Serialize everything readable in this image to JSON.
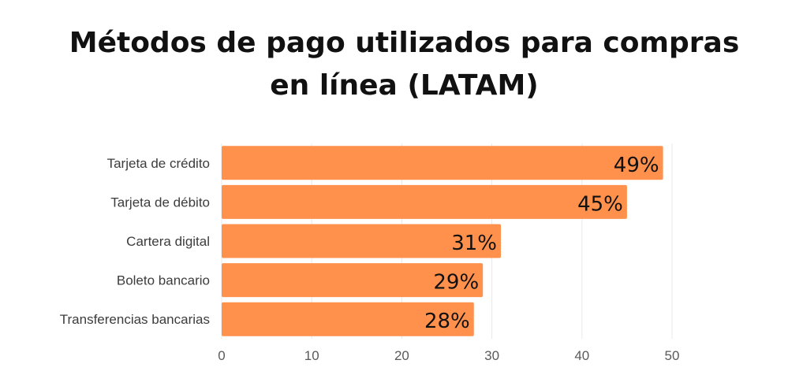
{
  "chart_data": {
    "type": "bar",
    "orientation": "horizontal",
    "title_lines": [
      "Métodos de pago utilizados para compras",
      "en línea (LATAM)"
    ],
    "categories": [
      "Tarjeta de crédito",
      "Tarjeta de débito",
      "Cartera digital",
      "Boleto bancario",
      "Transferencias bancarias"
    ],
    "values": [
      49,
      45,
      31,
      29,
      28
    ],
    "data_labels": [
      "49%",
      "45%",
      "31%",
      "29%",
      "28%"
    ],
    "xlim": [
      0,
      50
    ],
    "xticks": [
      0,
      10,
      20,
      30,
      40,
      50
    ],
    "xlabel": "",
    "ylabel": "",
    "grid": "vertical",
    "colors": {
      "bar": "#FF914D",
      "grid": "#E8E8E8",
      "category_text": "#3C3C3C",
      "tick_text": "#5A5A5A",
      "data_label_text": "#111111"
    }
  }
}
